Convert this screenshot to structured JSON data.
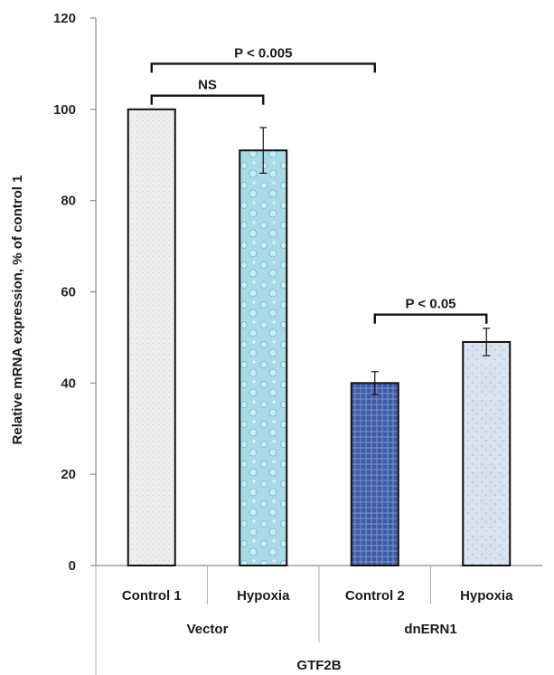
{
  "chart_data": {
    "type": "bar",
    "title": "",
    "ylabel": "Relative mRNA expression, % of control 1",
    "ylim": [
      0,
      120
    ],
    "yticks": [
      0,
      20,
      40,
      60,
      80,
      100,
      120
    ],
    "categories": [
      "Control 1",
      "Hypoxia",
      "Control 2",
      "Hypoxia"
    ],
    "values": [
      100,
      91,
      40,
      49
    ],
    "errors": [
      0,
      5,
      2.5,
      3
    ],
    "groups": [
      {
        "label": "Vector",
        "members": [
          0,
          1
        ]
      },
      {
        "label": "dnERN1",
        "members": [
          2,
          3
        ]
      }
    ],
    "gene_label": "GTF2B",
    "bar_fills": [
      "#ececec",
      "#a9dbe6",
      "#3d5aa6",
      "#d7e4f0"
    ],
    "significance": [
      {
        "from": 0,
        "to": 1,
        "label": "NS",
        "level": 103
      },
      {
        "from": 0,
        "to": 2,
        "label": "P < 0.005",
        "level": 110
      },
      {
        "from": 2,
        "to": 3,
        "label": "P < 0.05",
        "level": 55
      }
    ],
    "grid": false,
    "legend": "none"
  }
}
